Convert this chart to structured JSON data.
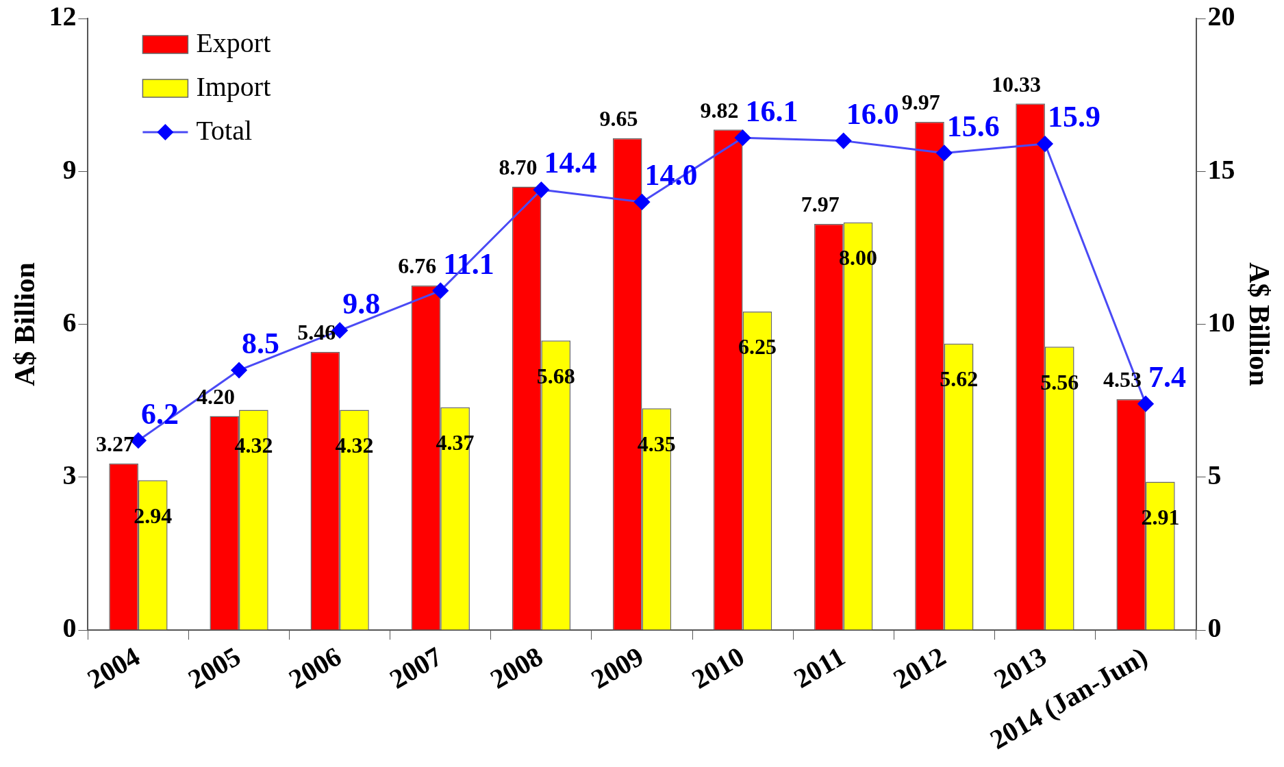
{
  "chart_data": {
    "type": "bar",
    "categories": [
      "2004",
      "2005",
      "2006",
      "2007",
      "2008",
      "2009",
      "2010",
      "2011",
      "2012",
      "2013",
      "2014 (Jan-Jun)"
    ],
    "series": [
      {
        "name": "Export",
        "color": "#ff0000",
        "values": [
          3.27,
          4.2,
          5.46,
          6.76,
          8.7,
          9.65,
          9.82,
          7.97,
          9.97,
          10.33,
          4.53
        ],
        "value_labels": [
          "3.27",
          "4.20",
          "5.46",
          "6.76",
          "8.70",
          "9.65",
          "9.82",
          "7.97",
          "9.97",
          "10.33",
          "4.53"
        ]
      },
      {
        "name": "Import",
        "color": "#ffff00",
        "values": [
          2.94,
          4.32,
          4.32,
          4.37,
          5.68,
          4.35,
          6.25,
          8.0,
          5.62,
          5.56,
          2.91
        ],
        "value_labels": [
          "2.94",
          "4.32",
          "4.32",
          "4.37",
          "5.68",
          "4.35",
          "6.25",
          "8.00",
          "5.62",
          "5.56",
          "2.91"
        ]
      },
      {
        "name": "Total",
        "type": "line",
        "axis": "y2",
        "color": "#4a4af5",
        "values": [
          6.2,
          8.5,
          9.8,
          11.1,
          14.4,
          14.0,
          16.1,
          16.0,
          15.6,
          15.9,
          7.4
        ],
        "value_labels": [
          "6.2",
          "8.5",
          "9.8",
          "11.1",
          "14.4",
          "14.0",
          "16.1",
          "16.0",
          "15.6",
          "15.9",
          "7.4"
        ]
      }
    ],
    "ylabel": "A$ Billion",
    "y2label": "A$ Billion",
    "ylim": [
      0,
      12
    ],
    "yticks": [
      0,
      3,
      6,
      9,
      12
    ],
    "y2lim": [
      0,
      20
    ],
    "y2ticks": [
      0,
      5,
      10,
      15,
      20
    ],
    "grid": false,
    "legend": "top left",
    "marker": "diamond",
    "line_style": "solid"
  }
}
